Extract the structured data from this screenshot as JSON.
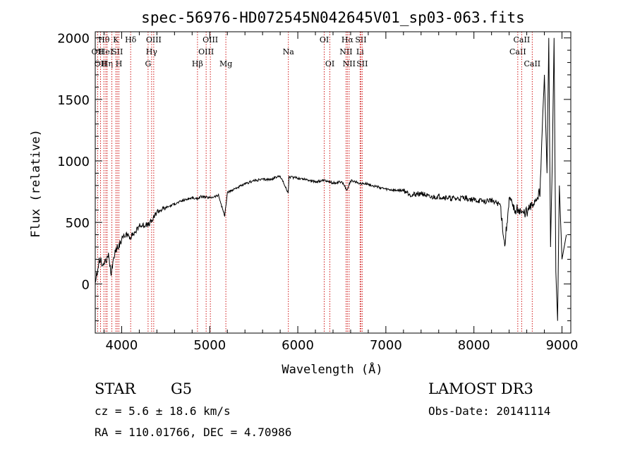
{
  "chart_data": {
    "type": "line",
    "title": "spec-56976-HD072545N042645V01_sp03-063.fits",
    "xlabel": "Wavelength (Å)",
    "ylabel": "Flux (relative)",
    "xlim": [
      3700,
      9100
    ],
    "ylim": [
      -400,
      2050
    ],
    "xticks": [
      "4000",
      "5000",
      "6000",
      "7000",
      "8000",
      "9000"
    ],
    "yticks": [
      "0",
      "500",
      "1000",
      "1500",
      "2000"
    ],
    "xtick_values": [
      4000,
      5000,
      6000,
      7000,
      8000,
      9000
    ],
    "ytick_values": [
      0,
      500,
      1000,
      1500,
      2000
    ],
    "line_color": "#000000",
    "marker_color": "#cc0000",
    "series": [
      {
        "x": [
          3700,
          3750,
          3800,
          3850,
          3880,
          3920,
          3960,
          4000,
          4050,
          4100,
          4150,
          4200,
          4250,
          4300,
          4350,
          4400,
          4500,
          4600,
          4700,
          4800,
          4850,
          4900,
          5000,
          5100,
          5170,
          5200,
          5300,
          5400,
          5500,
          5600,
          5700,
          5800,
          5890,
          5900,
          6000,
          6100,
          6200,
          6300,
          6400,
          6500,
          6560,
          6600,
          6700,
          6800,
          6900,
          7000,
          7100,
          7200,
          7300,
          7400,
          7500,
          7600,
          7700,
          7800,
          7900,
          8000,
          8100,
          8200,
          8300,
          8350,
          8400,
          8450,
          8500,
          8550,
          8600,
          8650,
          8700,
          8750,
          8800,
          8830,
          8850,
          8870,
          8890,
          8910,
          8930,
          8950,
          8970,
          9000,
          9050
        ],
        "y": [
          0,
          200,
          150,
          220,
          90,
          260,
          300,
          370,
          400,
          380,
          420,
          470,
          480,
          480,
          520,
          590,
          620,
          650,
          680,
          700,
          690,
          710,
          700,
          720,
          550,
          740,
          780,
          810,
          840,
          850,
          850,
          880,
          740,
          870,
          860,
          850,
          830,
          840,
          820,
          830,
          760,
          840,
          820,
          810,
          790,
          770,
          760,
          760,
          720,
          740,
          700,
          710,
          700,
          690,
          700,
          680,
          670,
          680,
          640,
          300,
          700,
          600,
          620,
          560,
          590,
          620,
          680,
          750,
          1700,
          900,
          2000,
          300,
          1000,
          2000,
          100,
          -300,
          800,
          200,
          400
        ]
      }
    ],
    "markers": [
      {
        "x": 3727,
        "label": "OII",
        "row": 2
      },
      {
        "x": 3760,
        "label": "OII",
        "row": 3
      },
      {
        "x": 3798,
        "label": "Hθ",
        "row": 1
      },
      {
        "x": 3820,
        "label": "HeI",
        "row": 2
      },
      {
        "x": 3835,
        "label": "Hη",
        "row": 3
      },
      {
        "x": 3889,
        "label": "",
        "row": 0
      },
      {
        "x": 3934,
        "label": "K",
        "row": 1
      },
      {
        "x": 3950,
        "label": "SII",
        "row": 2
      },
      {
        "x": 3969,
        "label": "H",
        "row": 3
      },
      {
        "x": 4102,
        "label": "Hδ",
        "row": 1
      },
      {
        "x": 4300,
        "label": "G",
        "row": 3
      },
      {
        "x": 4340,
        "label": "Hγ",
        "row": 2
      },
      {
        "x": 4364,
        "label": "OIII",
        "row": 1
      },
      {
        "x": 4861,
        "label": "Hβ",
        "row": 3
      },
      {
        "x": 4959,
        "label": "OIII",
        "row": 2
      },
      {
        "x": 5007,
        "label": "OIII",
        "row": 1
      },
      {
        "x": 5183,
        "label": "Mg",
        "row": 3
      },
      {
        "x": 5893,
        "label": "Na",
        "row": 2
      },
      {
        "x": 6300,
        "label": "OI",
        "row": 1
      },
      {
        "x": 6364,
        "label": "OI",
        "row": 3
      },
      {
        "x": 6548,
        "label": "NII",
        "row": 2
      },
      {
        "x": 6563,
        "label": "Hα",
        "row": 1
      },
      {
        "x": 6583,
        "label": "NII",
        "row": 3
      },
      {
        "x": 6707,
        "label": "Li",
        "row": 2
      },
      {
        "x": 6716,
        "label": "SII",
        "row": 1
      },
      {
        "x": 6731,
        "label": "SII",
        "row": 3
      },
      {
        "x": 8498,
        "label": "CaII",
        "row": 2
      },
      {
        "x": 8542,
        "label": "CaII",
        "row": 1
      },
      {
        "x": 8662,
        "label": "CaII",
        "row": 3
      }
    ]
  },
  "info": {
    "class": "STAR",
    "subclass": "G5",
    "survey": "LAMOST DR3",
    "cz": "cz = 5.6 ± 18.6 km/s",
    "obs_date": "Obs-Date: 20141114",
    "radec": "RA = 110.01766, DEC =   4.70986"
  }
}
